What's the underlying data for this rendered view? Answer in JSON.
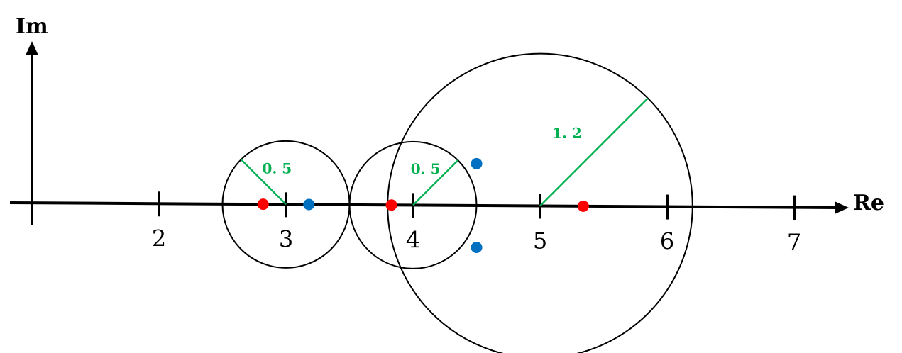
{
  "axes": {
    "real_label": "Re",
    "imag_label": "Im"
  },
  "ticks": [
    {
      "value": 2,
      "label": "2"
    },
    {
      "value": 3,
      "label": "3"
    },
    {
      "value": 4,
      "label": "4"
    },
    {
      "value": 5,
      "label": "5"
    },
    {
      "value": 6,
      "label": "6"
    },
    {
      "value": 7,
      "label": "7"
    }
  ],
  "discs": [
    {
      "center_re": 3,
      "radius": 0.5,
      "label": "0. 5"
    },
    {
      "center_re": 4,
      "radius": 0.5,
      "label": "0. 5"
    },
    {
      "center_re": 5,
      "radius": 1.2,
      "label": "1. 2"
    }
  ],
  "red_points": [
    {
      "re": 2.82,
      "im": 0
    },
    {
      "re": 3.83,
      "im": 0
    },
    {
      "re": 5.34,
      "im": 0
    }
  ],
  "blue_points": [
    {
      "re": 3.18,
      "im": 0
    },
    {
      "re": 4.5,
      "im": 0.33
    },
    {
      "re": 4.5,
      "im": -0.33
    }
  ],
  "colors": {
    "axis": "#000000",
    "circle": "#000000",
    "radius": "#00b050",
    "radius_label": "#00b050",
    "red_point": "#ff0000",
    "blue_point": "#0070c0"
  }
}
